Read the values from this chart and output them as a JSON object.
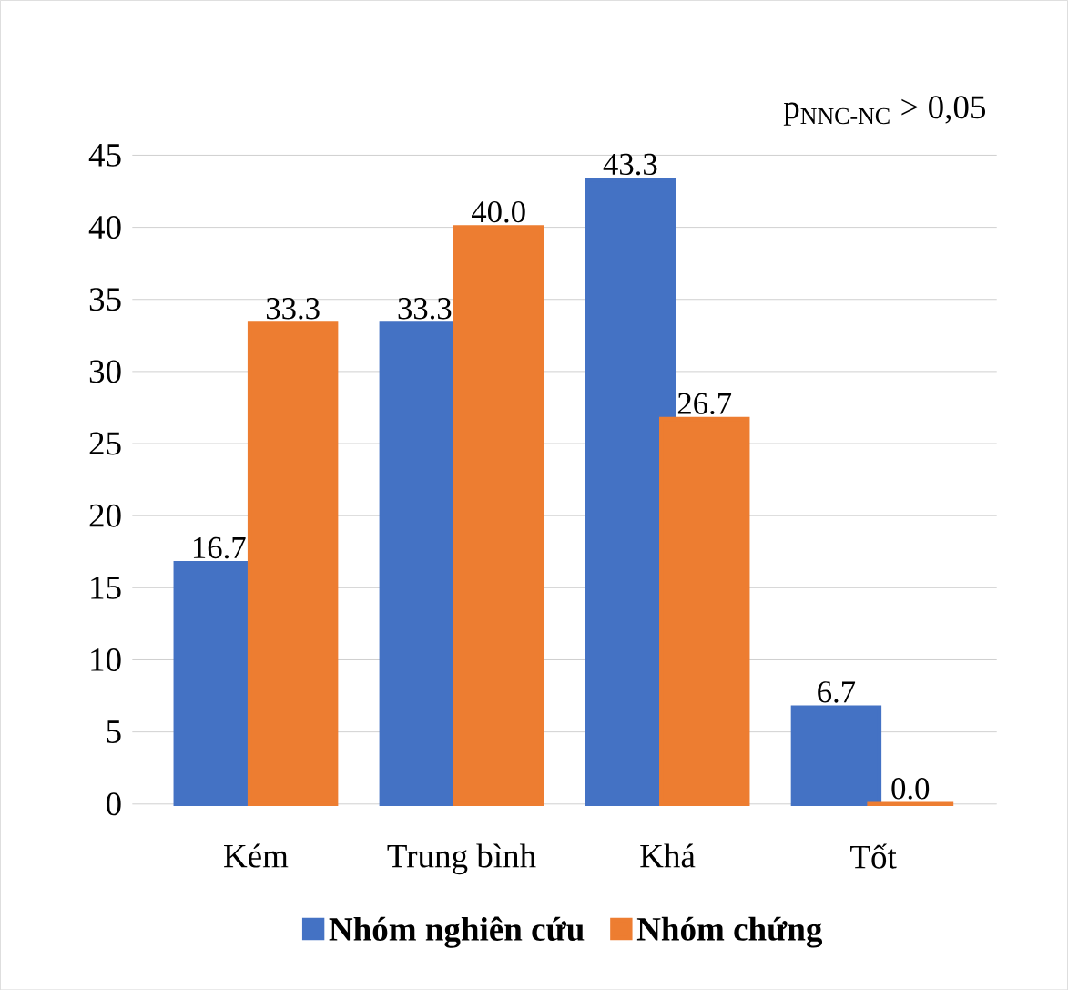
{
  "chart_data": {
    "type": "bar",
    "categories": [
      "Kém",
      "Trung bình",
      "Khá",
      "Tốt"
    ],
    "series": [
      {
        "name": "Nhóm nghiên cứu",
        "color": "#4472c4",
        "values": [
          16.7,
          33.3,
          43.3,
          6.7
        ],
        "value_labels": [
          "16.7",
          "33.3",
          "43.3",
          "6.7"
        ]
      },
      {
        "name": "Nhóm chứng",
        "color": "#ed7d31",
        "values": [
          33.3,
          40.0,
          26.7,
          0.0
        ],
        "value_labels": [
          "33.3",
          "40.0",
          "26.7",
          "0.0"
        ]
      }
    ],
    "ylim": [
      0,
      45
    ],
    "yticks": [
      0,
      5,
      10,
      15,
      20,
      25,
      30,
      35,
      40,
      45
    ],
    "grid": "y",
    "legend": "bottom",
    "annotations": [
      "p$_{NNC-NC}$ > 0,05"
    ]
  }
}
